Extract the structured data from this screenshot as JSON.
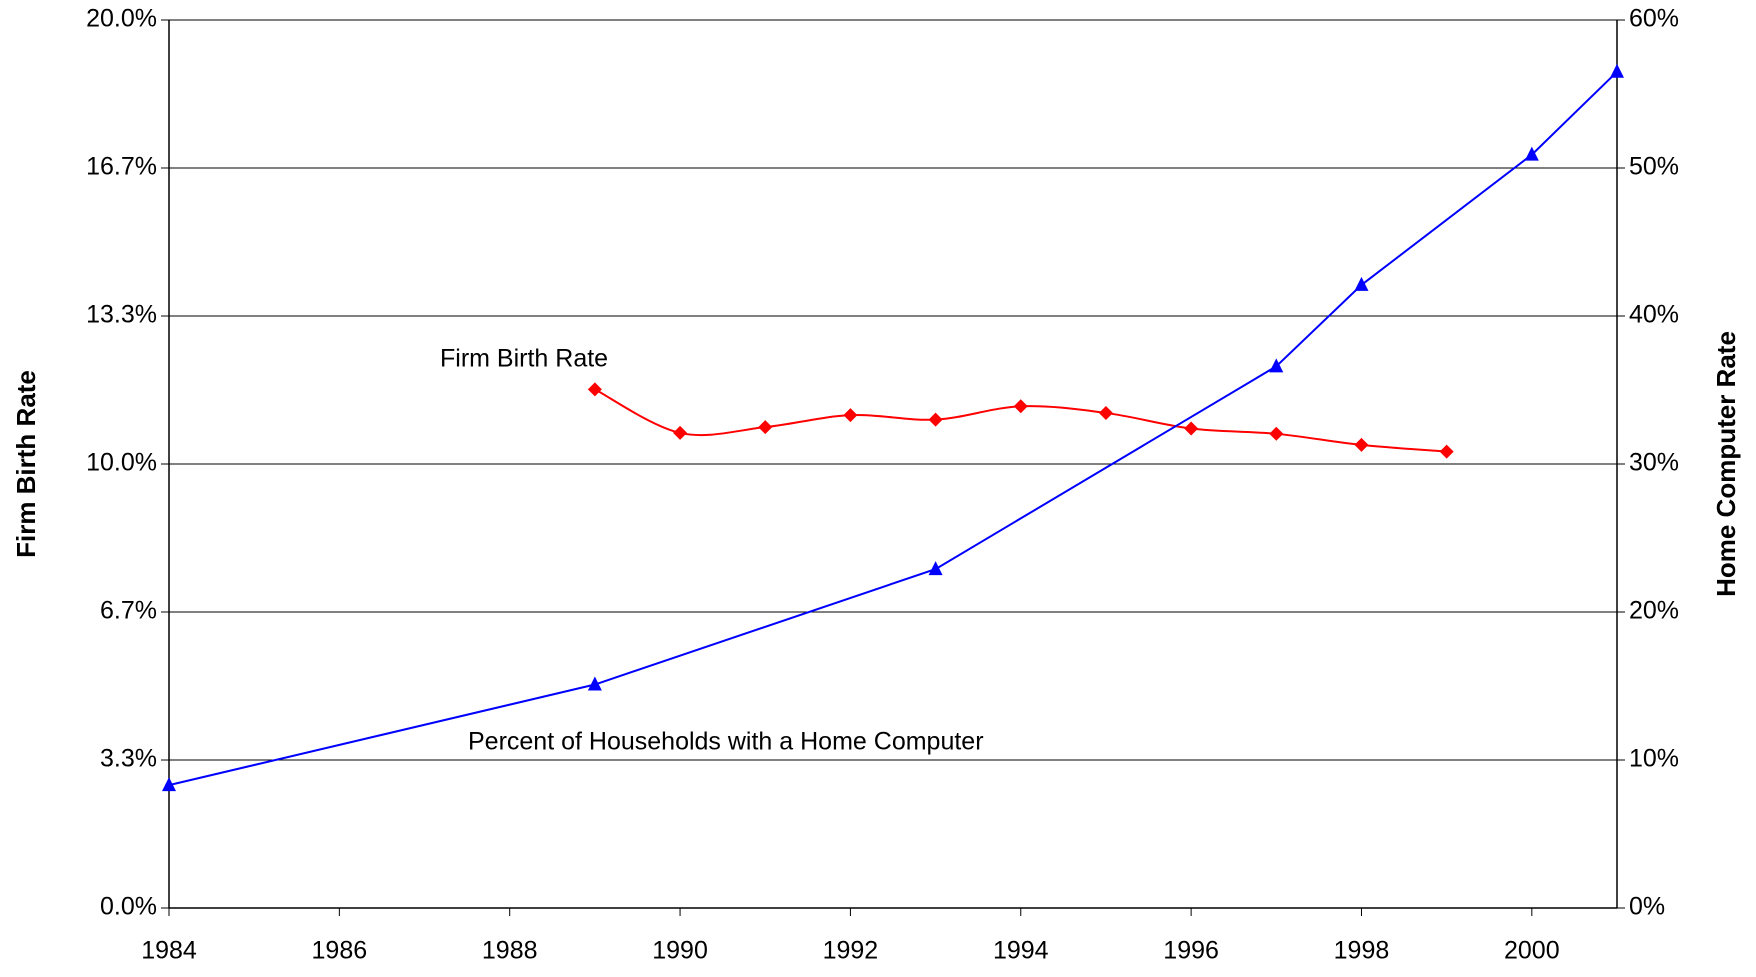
{
  "chart_data": {
    "type": "line",
    "ylabel": "Firm Birth Rate",
    "y2label": "Home Computer Rate",
    "xlim": [
      1984,
      2001
    ],
    "xticks": [
      1984,
      1986,
      1988,
      1990,
      1992,
      1994,
      1996,
      1998,
      2000
    ],
    "ylim": [
      0,
      20
    ],
    "yticks": [
      {
        "value": 0,
        "label": "0.0%"
      },
      {
        "value": 3.333,
        "label": "3.3%"
      },
      {
        "value": 6.667,
        "label": "6.7%"
      },
      {
        "value": 10,
        "label": "10.0%"
      },
      {
        "value": 13.333,
        "label": "13.3%"
      },
      {
        "value": 16.667,
        "label": "16.7%"
      },
      {
        "value": 20,
        "label": "20.0%"
      }
    ],
    "y2lim": [
      0,
      60
    ],
    "y2ticks": [
      {
        "value": 0,
        "label": "0%"
      },
      {
        "value": 10,
        "label": "10%"
      },
      {
        "value": 20,
        "label": "20%"
      },
      {
        "value": 30,
        "label": "30%"
      },
      {
        "value": 40,
        "label": "40%"
      },
      {
        "value": 50,
        "label": "50%"
      },
      {
        "value": 60,
        "label": "60%"
      }
    ],
    "grid": true,
    "series": [
      {
        "name": "Firm Birth Rate",
        "color": "#ff0000",
        "marker": "diamond",
        "smooth": true,
        "x": [
          1989,
          1990,
          1991,
          1992,
          1993,
          1994,
          1995,
          1996,
          1997,
          1998,
          1999
        ],
        "values": [
          11.68,
          10.7,
          10.83,
          11.1,
          11.0,
          11.3,
          11.15,
          10.8,
          10.68,
          10.43,
          10.28
        ]
      },
      {
        "name": "Percent of Households with a Home Computer",
        "color": "#0000ff",
        "marker": "triangle",
        "axis": "y2",
        "x": [
          1984,
          1989,
          1993,
          1997,
          1998,
          2000,
          2001
        ],
        "values": [
          8.3,
          15.1,
          22.9,
          36.6,
          42.1,
          50.9,
          56.5
        ]
      }
    ]
  }
}
